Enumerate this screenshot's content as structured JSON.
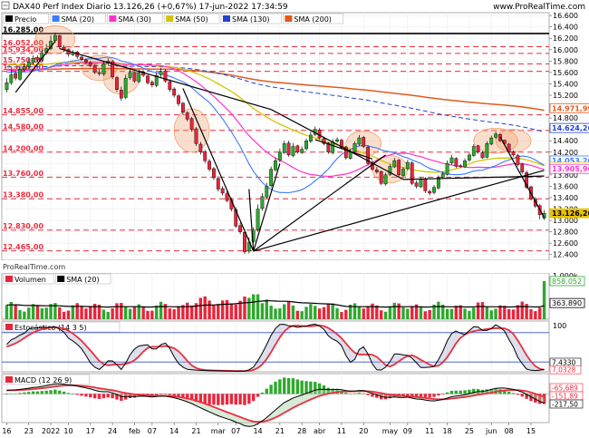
{
  "header": {
    "title": "DAX40 Perf Index Diario 13.126,26 (+0,67%) 17-jun-2022 17:34:59",
    "source": "www.ProRealTime.com",
    "watermark": "ProRealTime.com"
  },
  "colors": {
    "up": "#2ea82e",
    "down": "#e8253c",
    "sma20": "#3c7bff",
    "sma30": "#ff33cc",
    "sma50": "#d4c400",
    "sma130": "#2244cc",
    "sma200": "#e05a1e",
    "trend": "#000000",
    "level": "#e83040",
    "highlight": "#f2a070",
    "vol_sma": "#000000",
    "stoch_k": "#000000",
    "stoch_d": "#e83040",
    "macd_line": "#000000",
    "macd_signal": "#e83040"
  },
  "price_panel": {
    "legend": [
      {
        "name": "Precio",
        "color": "#000000"
      },
      {
        "name": "SMA (20)",
        "color": "#3c7bff"
      },
      {
        "name": "SMA (30)",
        "color": "#ff33cc"
      },
      {
        "name": "SMA (50)",
        "color": "#d4c400"
      },
      {
        "name": "SMA (130)",
        "color": "#2244cc"
      },
      {
        "name": "SMA (200)",
        "color": "#e05a1e"
      }
    ],
    "ylim": [
      12300,
      16650
    ],
    "right_ticks": [
      16600,
      16400,
      16200,
      16000,
      15800,
      15600,
      15400,
      15200,
      15000,
      14800,
      14600,
      14400,
      14200,
      14000,
      13800,
      13600,
      13400,
      13200,
      13000,
      12800,
      12600,
      12400
    ],
    "right_tick_labels": [
      "16.600",
      "16.400",
      "16.200",
      "16.000",
      "15.800",
      "15.600",
      "15.400",
      "15.200",
      "15.000",
      "14.800",
      "14.600",
      "14.400",
      "14.200",
      "14.000",
      "13.800",
      "13.600",
      "13.400",
      "13.200",
      "13.000",
      "12.800",
      "12.600",
      "12.400"
    ],
    "levels": [
      {
        "value": 16285,
        "label": "16.285,00",
        "style": "solid"
      },
      {
        "value": 16052,
        "label": "16.052,00",
        "style": "dashed"
      },
      {
        "value": 15934,
        "label": "15.934,00",
        "style": "dashed"
      },
      {
        "value": 15750,
        "label": "15.750,00",
        "style": "dashed"
      },
      {
        "value": 15620,
        "label": "15.620,00",
        "style": "dashed"
      },
      {
        "value": 14855,
        "label": "14.855,00",
        "style": "dashed"
      },
      {
        "value": 14580,
        "label": "14.580,00",
        "style": "dashed"
      },
      {
        "value": 14200,
        "label": "14.200,00",
        "style": "dashed"
      },
      {
        "value": 13760,
        "label": "13.760,00",
        "style": "dashed"
      },
      {
        "value": 13380,
        "label": "13.380,00",
        "style": "dashed"
      },
      {
        "value": 12830,
        "label": "12.830,00",
        "style": "dashed"
      },
      {
        "value": 12465,
        "label": "12.465,00",
        "style": "dashed"
      }
    ],
    "right_badges": [
      {
        "value": 14971.99,
        "label": "14.971,99",
        "color": "#e05a1e",
        "text_color": "#e05a1e"
      },
      {
        "value": 14624.26,
        "label": "14.624,26",
        "color": "#2244cc",
        "text_color": "#2244cc"
      },
      {
        "value": 14053.26,
        "label": "14.053,26",
        "color": "#3c7bff",
        "text_color": "#3c7bff"
      },
      {
        "value": 13943.26,
        "label": "13.943,26",
        "color": "#d4c400",
        "text_color": "#d4c400"
      },
      {
        "value": 13905.96,
        "label": "13.905,96",
        "color": "#ff33cc",
        "text_color": "#ff33cc"
      },
      {
        "value": 13126.26,
        "label": "13.126,26",
        "color": "#e8c400",
        "text_color": "#000000",
        "filled": true
      }
    ]
  },
  "x_axis": {
    "labels": [
      {
        "i": 0,
        "t": "16"
      },
      {
        "i": 5,
        "t": "23"
      },
      {
        "i": 10,
        "t": "2022"
      },
      {
        "i": 14,
        "t": "10"
      },
      {
        "i": 19,
        "t": "17"
      },
      {
        "i": 24,
        "t": "24"
      },
      {
        "i": 29,
        "t": "feb"
      },
      {
        "i": 33,
        "t": "07"
      },
      {
        "i": 38,
        "t": "14"
      },
      {
        "i": 43,
        "t": "21"
      },
      {
        "i": 48,
        "t": "mar"
      },
      {
        "i": 52,
        "t": "07"
      },
      {
        "i": 57,
        "t": "14"
      },
      {
        "i": 62,
        "t": "21"
      },
      {
        "i": 67,
        "t": "28"
      },
      {
        "i": 71,
        "t": "abr"
      },
      {
        "i": 76,
        "t": "11"
      },
      {
        "i": 81,
        "t": "20"
      },
      {
        "i": 87,
        "t": "may"
      },
      {
        "i": 91,
        "t": "09"
      },
      {
        "i": 96,
        "t": "11"
      },
      {
        "i": 100,
        "t": "18"
      },
      {
        "i": 105,
        "t": "25"
      },
      {
        "i": 110,
        "t": "jun"
      },
      {
        "i": 114,
        "t": "08"
      },
      {
        "i": 119,
        "t": "15"
      }
    ]
  },
  "volume_panel": {
    "legend": [
      {
        "name": "Volumen",
        "color": "#000000"
      },
      {
        "name": "SMA (20)",
        "color": "#000000"
      }
    ],
    "ylim": [
      0,
      1000000
    ],
    "right_tick_labels": [
      "1.000k"
    ],
    "badges": [
      {
        "value": 858052,
        "label": "858.052",
        "color": "#2ea82e"
      },
      {
        "value": 363890,
        "label": "363.890",
        "color": "#000000"
      }
    ]
  },
  "stoch_panel": {
    "legend": [
      {
        "name": "Estocástico (14 3 5)",
        "color": "#000000"
      }
    ],
    "ylim": [
      0,
      100
    ],
    "bands": [
      80,
      20
    ],
    "right_tick_labels": [
      "100"
    ],
    "badges": [
      {
        "value": 7.433,
        "label": "7,4330",
        "color": "#000000"
      },
      {
        "value": 7.0328,
        "label": "7,0328",
        "color": "#e83040"
      }
    ]
  },
  "macd_panel": {
    "legend": [
      {
        "name": "MACD (12 26 9)",
        "color": "#000000"
      }
    ],
    "ylim": [
      -620,
      400
    ],
    "badges": [
      {
        "value": -65.689,
        "label": "-65,689",
        "color": "#e83040"
      },
      {
        "value": -151.89,
        "label": "-151,89",
        "color": "#e83040"
      },
      {
        "value": -217.5,
        "label": "-217,50",
        "color": "#000000"
      }
    ]
  },
  "chart_data": {
    "type": "candlestick",
    "title": "DAX40 Perf Index Diario 13.126,26 (+0,67%) 17-jun-2022 17:34:59",
    "series_names": [
      "Precio",
      "SMA (20)",
      "SMA (30)",
      "SMA (50)",
      "SMA (130)",
      "SMA (200)",
      "Volumen",
      "Estocástico (14 3 5)",
      "MACD (12 26 9)"
    ],
    "close": [
      15420,
      15560,
      15500,
      15650,
      15700,
      15780,
      15850,
      15820,
      15940,
      16020,
      16150,
      16250,
      16050,
      16000,
      15920,
      15950,
      15880,
      15830,
      15780,
      15720,
      15600,
      15580,
      15750,
      15800,
      15520,
      15300,
      15150,
      15500,
      15600,
      15450,
      15600,
      15550,
      15420,
      15380,
      15550,
      15620,
      15450,
      15300,
      15200,
      15050,
      14900,
      14780,
      14600,
      14350,
      14200,
      14050,
      13900,
      13750,
      13550,
      13480,
      13350,
      13200,
      12900,
      12800,
      12450,
      12620,
      12830,
      13200,
      13420,
      13600,
      13900,
      14050,
      14200,
      14350,
      14150,
      14300,
      14200,
      14250,
      14400,
      14500,
      14600,
      14450,
      14350,
      14200,
      14380,
      14420,
      14280,
      14100,
      14200,
      14350,
      14450,
      14300,
      14000,
      13900,
      13850,
      13650,
      13800,
      13950,
      14050,
      13800,
      13900,
      14020,
      13650,
      13600,
      13720,
      13520,
      13480,
      13580,
      13750,
      13820,
      14000,
      14100,
      13950,
      13950,
      14050,
      14150,
      14300,
      14200,
      14100,
      14350,
      14450,
      14520,
      14400,
      14350,
      14200,
      14150,
      13980,
      13850,
      13580,
      13380,
      13250,
      13100,
      13126
    ],
    "open": [
      15300,
      15420,
      15580,
      15480,
      15650,
      15700,
      15780,
      15860,
      15820,
      15950,
      16020,
      16160,
      16250,
      16040,
      16000,
      15910,
      15960,
      15870,
      15820,
      15770,
      15720,
      15600,
      15570,
      15760,
      15790,
      15510,
      15290,
      15160,
      15510,
      15600,
      15440,
      15610,
      15540,
      15430,
      15370,
      15560,
      15630,
      15440,
      15310,
      15190,
      15060,
      14890,
      14790,
      14610,
      14340,
      14210,
      14040,
      13910,
      13740,
      13560,
      13470,
      13360,
      13190,
      12910,
      12790,
      12460,
      12630,
      12840,
      13210,
      13410,
      13610,
      13890,
      14060,
      14190,
      14360,
      14140,
      14310,
      14190,
      14260,
      14390,
      14510,
      14590,
      14440,
      14360,
      14190,
      14390,
      14410,
      14290,
      14090,
      14210,
      14340,
      14460,
      14290,
      14010,
      13890,
      13860,
      13640,
      13810,
      13940,
      14060,
      13790,
      13910,
      14010,
      13660,
      13590,
      13730,
      13510,
      13490,
      13570,
      13760,
      13810,
      14010,
      14090,
      13960,
      13940,
      14060,
      14140,
      14310,
      14190,
      14110,
      14340,
      14460,
      14510,
      14410,
      14340,
      14210,
      14140,
      13990,
      13840,
      13590,
      13370,
      13260,
      13040
    ],
    "high": [
      15500,
      15650,
      15620,
      15720,
      15760,
      15850,
      15900,
      15900,
      16000,
      16100,
      16250,
      16300,
      16260,
      16080,
      16020,
      15990,
      15980,
      15900,
      15850,
      15800,
      15740,
      15660,
      15790,
      15850,
      15820,
      15540,
      15350,
      15560,
      15680,
      15620,
      15650,
      15640,
      15560,
      15460,
      15600,
      15680,
      15650,
      15480,
      15340,
      15220,
      15080,
      14920,
      14820,
      14640,
      14380,
      14240,
      14080,
      13940,
      13780,
      13600,
      13520,
      13400,
      13230,
      12960,
      12850,
      12700,
      12880,
      13280,
      13480,
      13660,
      13950,
      14100,
      14260,
      14400,
      14400,
      14360,
      14330,
      14300,
      14440,
      14560,
      14650,
      14620,
      14470,
      14380,
      14430,
      14460,
      14440,
      14310,
      14250,
      14390,
      14500,
      14480,
      14320,
      14060,
      13940,
      13880,
      13840,
      13990,
      14100,
      14080,
      13940,
      14060,
      14040,
      13700,
      13760,
      13760,
      13540,
      13620,
      13790,
      13860,
      14050,
      14150,
      14110,
      13990,
      14090,
      14190,
      14340,
      14330,
      14220,
      14390,
      14490,
      14560,
      14530,
      14420,
      14360,
      14230,
      14170,
      14010,
      13880,
      13610,
      13410,
      13290,
      13180
    ],
    "low": [
      15250,
      15380,
      15460,
      15450,
      15620,
      15660,
      15740,
      15780,
      15790,
      15910,
      15990,
      16120,
      16020,
      15960,
      15880,
      15890,
      15840,
      15800,
      15750,
      15690,
      15570,
      15540,
      15540,
      15730,
      15480,
      15260,
      15100,
      15130,
      15470,
      15420,
      15410,
      15520,
      15390,
      15340,
      15340,
      15520,
      15420,
      15260,
      15160,
      15010,
      14860,
      14740,
      14560,
      14310,
      14160,
      14010,
      13860,
      13710,
      13510,
      13440,
      13320,
      13160,
      12870,
      12760,
      12410,
      12420,
      12600,
      12800,
      13170,
      13380,
      13580,
      13860,
      14020,
      14170,
      14120,
      14110,
      14170,
      14170,
      14230,
      14360,
      14480,
      14420,
      14320,
      14170,
      14160,
      14360,
      14250,
      14070,
      14070,
      14180,
      14310,
      14270,
      13970,
      13870,
      13820,
      13620,
      13610,
      13780,
      13920,
      13770,
      13760,
      13880,
      13620,
      13560,
      13570,
      13480,
      13440,
      13460,
      13540,
      13730,
      13790,
      13980,
      13920,
      13920,
      13920,
      14030,
      14120,
      14170,
      14080,
      14090,
      14320,
      14430,
      14380,
      14320,
      14170,
      14120,
      13950,
      13820,
      13550,
      13350,
      13220,
      13020,
      13010
    ],
    "x_labels": [
      "16",
      "23",
      "2022",
      "10",
      "17",
      "24",
      "feb",
      "07",
      "14",
      "21",
      "mar",
      "07",
      "14",
      "21",
      "28",
      "abr",
      "11",
      "20",
      "may",
      "09",
      "11",
      "18",
      "25",
      "jun",
      "08",
      "15"
    ],
    "ylim": [
      12300,
      16650
    ]
  }
}
